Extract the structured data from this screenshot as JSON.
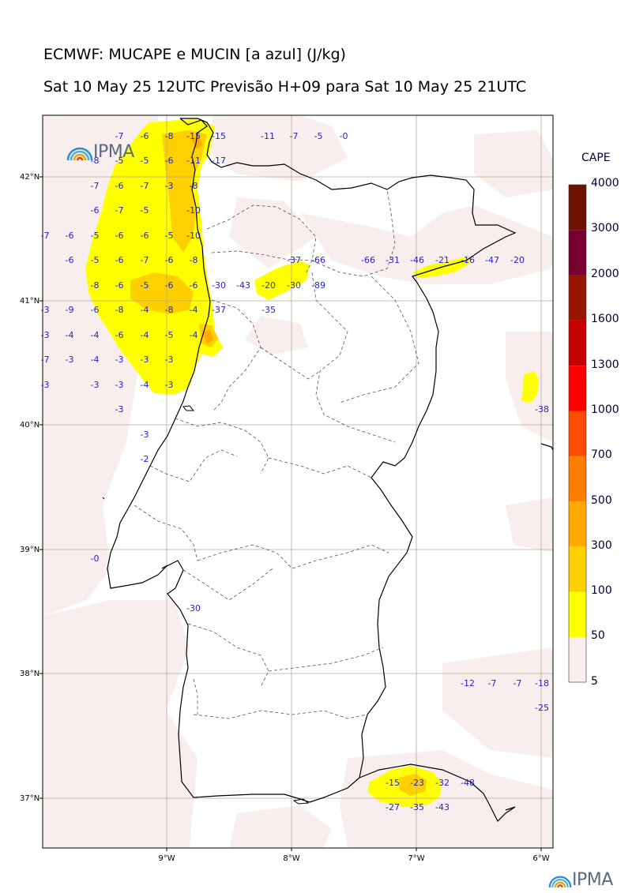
{
  "title_line1": "ECMWF: MUCAPE e MUCIN [a azul] (J/kg)",
  "title_line2": "Sat 10 May 25 12UTC Previsão H+09 para Sat 10 May 25 21UTC",
  "logo_text": "IPMA",
  "lat_labels": [
    "42°N",
    "41°N",
    "40°N",
    "39°N",
    "38°N",
    "37°N"
  ],
  "lon_labels": [
    "9°W",
    "8°W",
    "7°W",
    "6°W"
  ],
  "colorbar": {
    "title": "CAPE",
    "levels": [
      "4000",
      "3000",
      "2000",
      "1600",
      "1300",
      "1000",
      "700",
      "500",
      "300",
      "100",
      "50",
      "5"
    ],
    "colors": [
      "#6e1200",
      "#780030",
      "#961400",
      "#c80000",
      "#ff0000",
      "#ff4b00",
      "#ff7d00",
      "#ffaa00",
      "#ffd000",
      "#ffff00",
      "#f8eeee"
    ]
  },
  "cin_labels": {
    "row_42_3": [
      "-7",
      "-6",
      "-8",
      "-15",
      "-15",
      "-11",
      "-7",
      "-5",
      "-0"
    ],
    "row_42_1": [
      "-8",
      "-5",
      "-5",
      "-6",
      "-11",
      "-17"
    ],
    "row_41_9": [
      "-7",
      "-6",
      "-7",
      "-3",
      "-8"
    ],
    "row_41_7": [
      "-6",
      "-7",
      "-5",
      "-10"
    ],
    "row_41_5": [
      "-7",
      "-6",
      "-5",
      "-6",
      "-6",
      "-5",
      "-10"
    ],
    "row_41_3": [
      "-6",
      "-5",
      "-6",
      "-7",
      "-6",
      "-8",
      "-37",
      "-66",
      "-66",
      "-31",
      "-46",
      "-21",
      "-16",
      "-47",
      "-20"
    ],
    "row_41_1": [
      "-8",
      "-6",
      "-5",
      "-6",
      "-6",
      "-30",
      "-43",
      "-20",
      "-30",
      "-89"
    ],
    "row_40_9": [
      "-3",
      "-9",
      "-6",
      "-8",
      "-4",
      "-8",
      "-4",
      "-37",
      "-35"
    ],
    "row_40_7": [
      "-3",
      "-4",
      "-4",
      "-6",
      "-4",
      "-5",
      "-4"
    ],
    "row_40_5": [
      "-7",
      "-3",
      "-4",
      "-3",
      "-3",
      "-3"
    ],
    "row_40_3": [
      "-3",
      "-3",
      "-3",
      "-4",
      "-3"
    ],
    "row_40_1": [
      "-3",
      "-38"
    ],
    "row_39_9": [
      "-3"
    ],
    "row_39_7": [
      "-2"
    ],
    "row_38_9": [
      "-0"
    ],
    "row_38_5": [
      "-30"
    ],
    "row_37_9": [
      "-12",
      "-7",
      "-7",
      "-18"
    ],
    "row_37_7": [
      "-25"
    ],
    "row_37_1": [
      "-15",
      "-23",
      "-32",
      "-48"
    ],
    "row_36_9": [
      "-27",
      "-35",
      "-43"
    ]
  }
}
